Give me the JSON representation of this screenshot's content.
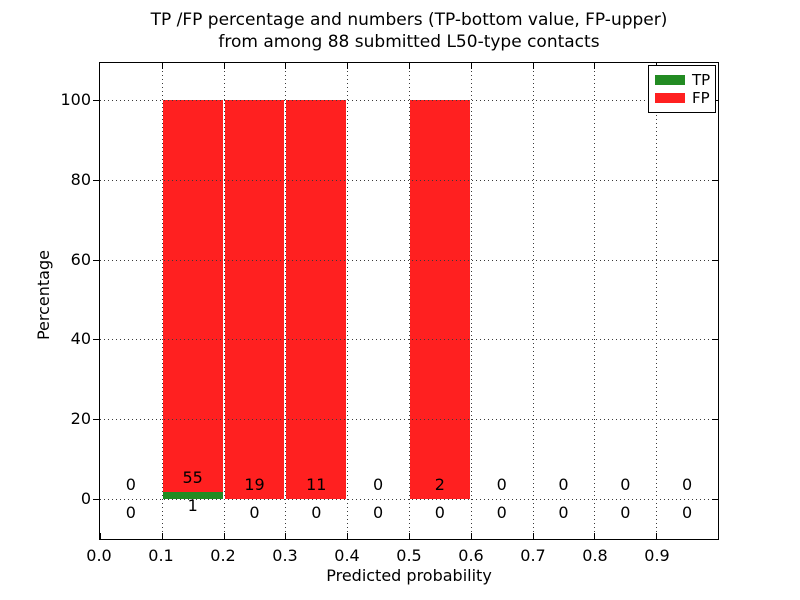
{
  "chart_data": {
    "type": "bar",
    "stacked": true,
    "title_line1": "TP /FP percentage and numbers (TP-bottom value, FP-upper)",
    "title_line2": "from among 88 submitted L50-type contacts",
    "xlabel": "Predicted probability",
    "ylabel": "Percentage",
    "total_contacts": 88,
    "xlim": [
      0.0,
      1.0
    ],
    "ylim": [
      -10.3,
      109.5
    ],
    "grid": true,
    "grid_style": "dotted",
    "legend_position": "upper-right",
    "bins": [
      0.0,
      0.1,
      0.2,
      0.3,
      0.4,
      0.5,
      0.6,
      0.7,
      0.8,
      0.9
    ],
    "bin_width": 0.1,
    "xtick_labels": [
      "0.0",
      "0.1",
      "0.2",
      "0.3",
      "0.4",
      "0.5",
      "0.6",
      "0.7",
      "0.8",
      "0.9"
    ],
    "ytick_values": [
      0,
      20,
      40,
      60,
      80,
      100
    ],
    "series": [
      {
        "name": "TP",
        "color": "#228b22",
        "counts": [
          0,
          1,
          0,
          0,
          0,
          0,
          0,
          0,
          0,
          0
        ],
        "percent": [
          0,
          1.8,
          0,
          0,
          0,
          0,
          0,
          0,
          0,
          0
        ]
      },
      {
        "name": "FP",
        "color": "#ff2020",
        "counts": [
          0,
          55,
          19,
          11,
          0,
          2,
          0,
          0,
          0,
          0
        ],
        "percent": [
          0,
          98.2,
          100,
          100,
          0,
          100,
          0,
          0,
          0,
          0
        ]
      }
    ]
  }
}
